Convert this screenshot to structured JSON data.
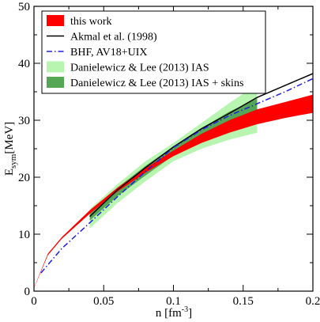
{
  "chart_data": {
    "type": "line",
    "xlabel": {
      "base": "n [fm",
      "exp": "-3",
      "close": "]"
    },
    "ylabel": {
      "base": "E",
      "sub": "sym",
      "rest": "[MeV]"
    },
    "xlim": [
      0,
      0.2
    ],
    "ylim": [
      0,
      50
    ],
    "xticks": [
      {
        "v": 0,
        "label": "0"
      },
      {
        "v": 0.05,
        "label": "0.05"
      },
      {
        "v": 0.1,
        "label": "0.1"
      },
      {
        "v": 0.15,
        "label": "0.15"
      },
      {
        "v": 0.2,
        "label": "0.2"
      }
    ],
    "yticks": [
      {
        "v": 0,
        "label": "0"
      },
      {
        "v": 10,
        "label": "10"
      },
      {
        "v": 20,
        "label": "20"
      },
      {
        "v": 30,
        "label": "30"
      },
      {
        "v": 40,
        "label": "40"
      },
      {
        "v": 50,
        "label": "50"
      }
    ],
    "grid": false,
    "legend_position": "top-left",
    "series": [
      {
        "name": "Danielewicz & Lee (2013) IAS",
        "kind": "band",
        "color": "#b7f5b0",
        "x": [
          0.04,
          0.06,
          0.08,
          0.1,
          0.12,
          0.14,
          0.16
        ],
        "low": [
          11.0,
          15.5,
          19.3,
          22.8,
          25.0,
          26.6,
          27.8
        ],
        "high": [
          14.4,
          18.8,
          22.8,
          26.0,
          29.5,
          33.0,
          36.3
        ]
      },
      {
        "name": "Danielewicz & Lee (2013) IAS + skins",
        "kind": "band",
        "color": "#55a655",
        "x": [
          0.04,
          0.06,
          0.08,
          0.1,
          0.12,
          0.14,
          0.16
        ],
        "low": [
          12.4,
          16.7,
          20.3,
          23.8,
          26.6,
          28.8,
          30.9
        ],
        "high": [
          14.0,
          18.2,
          22.0,
          25.4,
          28.6,
          31.5,
          33.8
        ]
      },
      {
        "name": "this work",
        "kind": "band",
        "color": "#ff0000",
        "x": [
          0.0,
          0.01,
          0.02,
          0.04,
          0.06,
          0.08,
          0.1,
          0.12,
          0.14,
          0.16,
          0.18,
          0.2
        ],
        "low": [
          0.5,
          6.3,
          9.2,
          13.6,
          17.5,
          20.8,
          23.7,
          26.0,
          27.8,
          29.3,
          30.4,
          31.3
        ],
        "high": [
          0.6,
          6.6,
          9.5,
          14.2,
          18.2,
          21.6,
          24.7,
          27.6,
          30.0,
          31.9,
          33.2,
          34.5
        ]
      },
      {
        "name": "Akmal et al. (1998)",
        "kind": "line",
        "color": "#000000",
        "dash": "",
        "x": [
          0.04,
          0.06,
          0.08,
          0.1,
          0.12,
          0.14,
          0.16,
          0.18,
          0.2
        ],
        "y": [
          13.1,
          17.8,
          21.7,
          25.3,
          28.5,
          31.2,
          34.0,
          36.1,
          38.2
        ]
      },
      {
        "name": "BHF, AV18+UIX",
        "kind": "line",
        "color": "#1f1fe0",
        "dash": "7,3,1.5,3",
        "x": [
          0.005,
          0.02,
          0.04,
          0.06,
          0.08,
          0.1,
          0.12,
          0.14,
          0.16,
          0.18,
          0.2
        ],
        "y": [
          3.2,
          7.5,
          12.0,
          16.6,
          21.0,
          25.2,
          28.3,
          30.8,
          32.9,
          35.0,
          37.3
        ]
      }
    ],
    "legend": [
      {
        "label": "this work",
        "swatch": "box",
        "color": "#ff0000"
      },
      {
        "label": "Akmal et al. (1998)",
        "swatch": "line",
        "color": "#000000",
        "dash": ""
      },
      {
        "label": "BHF, AV18+UIX",
        "swatch": "line",
        "color": "#1f1fe0",
        "dash": "7,3,1.5,3"
      },
      {
        "label": "Danielewicz & Lee (2013) IAS",
        "swatch": "box",
        "color": "#b7f5b0"
      },
      {
        "label": "Danielewicz & Lee (2013) IAS + skins",
        "swatch": "box",
        "color": "#55a655"
      }
    ]
  }
}
